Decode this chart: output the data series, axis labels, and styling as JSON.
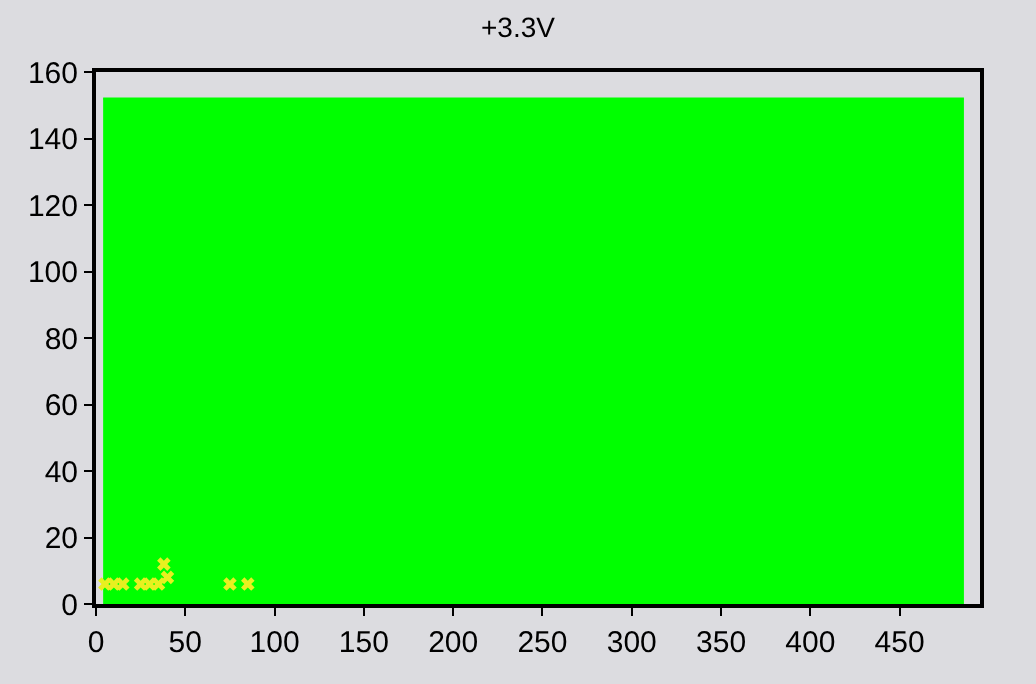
{
  "chart_data": {
    "type": "area",
    "title": "+3.3V",
    "xlim": [
      0,
      495
    ],
    "xticks": [
      0,
      50,
      100,
      150,
      200,
      250,
      300,
      350,
      400,
      450
    ],
    "ylim": [
      0,
      160
    ],
    "yticks": [
      0,
      20,
      40,
      60,
      80,
      100,
      120,
      140,
      160
    ],
    "grid": false,
    "series": [
      {
        "color": "#00ff00",
        "x": [
          4,
          100,
          200,
          300,
          400,
          486
        ],
        "values": [
          152,
          152,
          152,
          152,
          152,
          152
        ]
      },
      {
        "type": "scatter",
        "color": "#e8f020",
        "marker": "cross",
        "x": [
          5,
          10,
          15,
          25,
          30,
          35,
          38,
          40,
          75,
          85
        ],
        "values": [
          6,
          6,
          6,
          6,
          6,
          6,
          12,
          8,
          6,
          6
        ]
      }
    ]
  }
}
